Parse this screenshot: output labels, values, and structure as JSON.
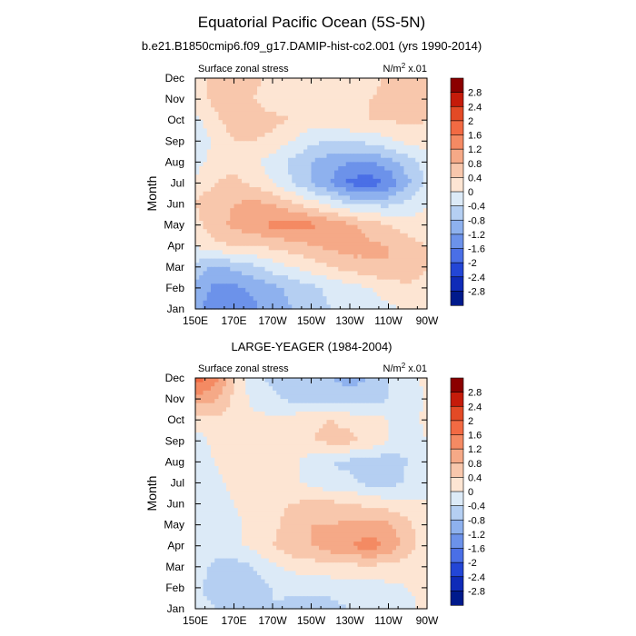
{
  "title": "Equatorial Pacific Ocean (5S-5N)",
  "colorbar": {
    "labels": [
      "2.8",
      "2.4",
      "2",
      "1.6",
      "1.2",
      "0.8",
      "0.4",
      "0",
      "-0.4",
      "-0.8",
      "-1.2",
      "-1.6",
      "-2",
      "-2.4",
      "-2.8"
    ],
    "colors": [
      "#8b0000",
      "#c51b0a",
      "#e34a26",
      "#f26a43",
      "#f48a63",
      "#f5a987",
      "#f8c7ac",
      "#fde5d3",
      "#dceaf7",
      "#b5cff2",
      "#8eb1ee",
      "#6c92ea",
      "#4a6fe6",
      "#2346d6",
      "#0f2bb8",
      "#001a8c"
    ]
  },
  "chart_data": [
    {
      "type": "heatmap",
      "title": "b.e21.B1850cmip6.f09_g17.DAMIP-hist-co2.001 (yrs 1990-2014)",
      "subtitle_left": "Surface zonal stress",
      "units": "N/m",
      "units_sup": "2",
      "units_suffix": " x.01",
      "ylabel": "Month",
      "xticks": [
        "150E",
        "170E",
        "170W",
        "150W",
        "130W",
        "110W",
        "90W"
      ],
      "yticks": [
        "Jan",
        "Feb",
        "Mar",
        "Apr",
        "May",
        "Jun",
        "Jul",
        "Aug",
        "Sep",
        "Oct",
        "Nov",
        "Dec"
      ],
      "x": [
        150,
        160,
        170,
        180,
        190,
        200,
        210,
        220,
        230,
        240,
        250,
        260,
        270
      ],
      "z": [
        [
          -1.0,
          -1.5,
          -1.6,
          -1.3,
          -1.0,
          -0.8,
          -0.6,
          -0.4,
          -0.3,
          -0.2,
          -0.1,
          0.1,
          0.2
        ],
        [
          -0.9,
          -1.3,
          -1.3,
          -1.1,
          -0.9,
          -0.7,
          -0.5,
          -0.3,
          -0.2,
          0.0,
          0.2,
          0.3,
          0.3
        ],
        [
          -0.5,
          -0.9,
          -0.7,
          -0.5,
          -0.2,
          0.0,
          0.2,
          0.4,
          0.6,
          0.7,
          0.8,
          0.7,
          0.4
        ],
        [
          0.0,
          0.3,
          0.4,
          0.4,
          0.5,
          0.6,
          0.8,
          0.9,
          1.0,
          0.9,
          0.8,
          0.6,
          0.4
        ],
        [
          0.3,
          0.6,
          0.9,
          1.1,
          1.3,
          1.4,
          1.3,
          1.1,
          0.9,
          0.6,
          0.4,
          0.2,
          0.1
        ],
        [
          0.4,
          0.7,
          0.8,
          0.9,
          0.8,
          0.5,
          0.2,
          -0.1,
          -0.4,
          -0.5,
          -0.5,
          -0.3,
          0.0
        ],
        [
          0.1,
          0.4,
          0.5,
          0.3,
          0.0,
          -0.4,
          -0.8,
          -1.2,
          -1.7,
          -1.9,
          -1.5,
          -0.9,
          -0.3
        ],
        [
          -0.2,
          0.2,
          0.3,
          0.1,
          -0.2,
          -0.5,
          -0.8,
          -1.0,
          -1.2,
          -1.2,
          -1.0,
          -0.6,
          -0.2
        ],
        [
          -0.4,
          0.1,
          0.4,
          0.4,
          0.3,
          0.0,
          -0.3,
          -0.4,
          -0.4,
          -0.3,
          -0.1,
          0.1,
          0.2
        ],
        [
          -0.1,
          0.3,
          0.6,
          0.6,
          0.5,
          0.4,
          0.2,
          0.3,
          0.4,
          0.4,
          0.4,
          0.5,
          0.4
        ],
        [
          0.2,
          0.5,
          0.6,
          0.4,
          0.2,
          0.2,
          0.3,
          0.4,
          0.3,
          0.4,
          0.5,
          0.5,
          0.4
        ],
        [
          0.3,
          0.5,
          0.6,
          0.5,
          0.3,
          0.2,
          0.2,
          0.3,
          0.3,
          0.2,
          0.5,
          0.6,
          0.5
        ]
      ],
      "zlim": [
        -3.2,
        3.2
      ]
    },
    {
      "type": "heatmap",
      "title": "LARGE-YEAGER (1984-2004)",
      "subtitle_left": "Surface zonal stress",
      "units": "N/m",
      "units_sup": "2",
      "units_suffix": " x.01",
      "ylabel": "Month",
      "xticks": [
        "150E",
        "170E",
        "170W",
        "150W",
        "130W",
        "110W",
        "90W"
      ],
      "yticks": [
        "Jan",
        "Feb",
        "Mar",
        "Apr",
        "May",
        "Jun",
        "Jul",
        "Aug",
        "Sep",
        "Oct",
        "Nov",
        "Dec"
      ],
      "x": [
        150,
        160,
        170,
        180,
        190,
        200,
        210,
        220,
        230,
        240,
        250,
        260,
        270
      ],
      "z": [
        [
          -0.2,
          -0.4,
          -0.6,
          -0.5,
          -0.4,
          -0.5,
          -0.6,
          -0.5,
          -0.4,
          -0.3,
          -0.2,
          -0.1,
          0.1
        ],
        [
          -0.3,
          -0.6,
          -0.7,
          -0.6,
          -0.4,
          -0.3,
          -0.3,
          -0.3,
          -0.2,
          -0.2,
          -0.1,
          0.0,
          0.1
        ],
        [
          -0.2,
          -0.5,
          -0.6,
          -0.4,
          -0.1,
          0.1,
          0.2,
          0.3,
          0.3,
          0.3,
          0.3,
          0.2,
          0.1
        ],
        [
          -0.1,
          -0.2,
          -0.1,
          0.1,
          0.4,
          0.7,
          0.8,
          1.0,
          1.2,
          1.4,
          1.1,
          0.6,
          0.2
        ],
        [
          -0.2,
          -0.3,
          -0.1,
          0.1,
          0.3,
          0.6,
          0.8,
          0.8,
          0.9,
          1.0,
          0.9,
          0.5,
          0.1
        ],
        [
          -0.2,
          -0.2,
          0.0,
          0.2,
          0.3,
          0.4,
          0.5,
          0.5,
          0.4,
          0.3,
          0.2,
          0.1,
          0.0
        ],
        [
          -0.2,
          -0.1,
          0.1,
          0.2,
          0.2,
          0.1,
          -0.1,
          -0.3,
          -0.3,
          -0.5,
          -0.6,
          -0.3,
          0.0
        ],
        [
          -0.2,
          0.0,
          0.2,
          0.3,
          0.2,
          0.1,
          -0.2,
          -0.4,
          -0.5,
          -0.5,
          -0.7,
          -0.4,
          0.0
        ],
        [
          -0.2,
          0.1,
          0.3,
          0.3,
          0.3,
          0.3,
          0.4,
          0.5,
          0.5,
          0.3,
          0.0,
          -0.2,
          0.0
        ],
        [
          0.2,
          0.3,
          0.2,
          0.1,
          0.1,
          0.2,
          0.3,
          0.4,
          0.3,
          0.2,
          0.0,
          -0.2,
          0.1
        ],
        [
          1.0,
          0.9,
          0.3,
          -0.1,
          -0.3,
          -0.5,
          -0.6,
          -0.6,
          -0.7,
          -0.6,
          -0.4,
          -0.3,
          0.1
        ],
        [
          1.9,
          1.4,
          0.4,
          -0.3,
          -0.5,
          -0.6,
          -0.7,
          -0.8,
          -0.9,
          -0.8,
          -0.4,
          -0.2,
          0.1
        ]
      ],
      "zlim": [
        -3.2,
        3.2
      ]
    }
  ]
}
